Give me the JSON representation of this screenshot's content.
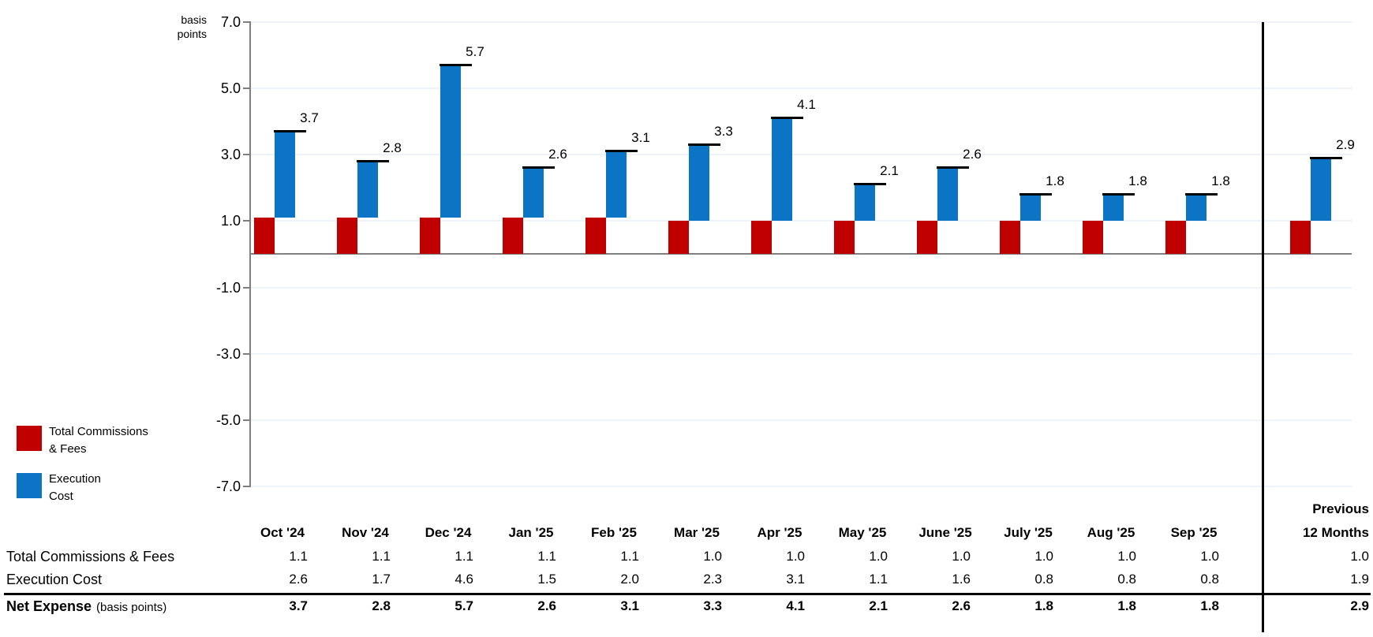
{
  "chart_data": {
    "type": "bar",
    "stacked": true,
    "ylabel": "basis points",
    "ylabel_lines": [
      "basis",
      "points"
    ],
    "ylim": [
      -7,
      7
    ],
    "yticks": [
      7,
      5,
      3,
      1,
      -1,
      -3,
      -5,
      -7
    ],
    "grid": true,
    "legend_position": "bottom-left",
    "categories": [
      "Oct '24",
      "Nov '24",
      "Dec '24",
      "Jan '25",
      "Feb '25",
      "Mar '25",
      "Apr '25",
      "May '25",
      "June '25",
      "July '25",
      "Aug '25",
      "Sep '25",
      "Previous 12 Months"
    ],
    "series": [
      {
        "name": "Total Commissions & Fees",
        "color": "#C00000",
        "values": [
          1.1,
          1.1,
          1.1,
          1.1,
          1.1,
          1.0,
          1.0,
          1.0,
          1.0,
          1.0,
          1.0,
          1.0,
          1.0
        ]
      },
      {
        "name": "Execution Cost",
        "color": "#0B74C4",
        "values": [
          2.6,
          1.7,
          4.6,
          1.5,
          2.0,
          2.3,
          3.1,
          1.1,
          1.6,
          0.8,
          0.8,
          0.8,
          1.9
        ]
      }
    ],
    "net_markers": {
      "name": "Net Expense",
      "unit": "basis points",
      "color": "#000000",
      "values": [
        3.7,
        2.8,
        5.7,
        2.6,
        3.1,
        3.3,
        4.1,
        2.1,
        2.6,
        1.8,
        1.8,
        1.8,
        2.9
      ]
    }
  },
  "legend": {
    "items": [
      {
        "lines": [
          "Total Commissions",
          "& Fees"
        ],
        "color": "#C00000"
      },
      {
        "lines": [
          "Execution",
          "Cost"
        ],
        "color": "#0B74C4"
      }
    ]
  },
  "table": {
    "columns": [
      "Oct '24",
      "Nov '24",
      "Dec '24",
      "Jan '25",
      "Feb '25",
      "Mar '25",
      "Apr '25",
      "May '25",
      "June '25",
      "July '25",
      "Aug '25",
      "Sep '25"
    ],
    "summary_header_lines": [
      "Previous",
      "12 Months"
    ],
    "rows": [
      {
        "label": "Total Commissions & Fees",
        "bold": false,
        "values": [
          "1.1",
          "1.1",
          "1.1",
          "1.1",
          "1.1",
          "1.0",
          "1.0",
          "1.0",
          "1.0",
          "1.0",
          "1.0",
          "1.0"
        ],
        "summary": "1.0"
      },
      {
        "label": "Execution Cost",
        "bold": false,
        "values": [
          "2.6",
          "1.7",
          "4.6",
          "1.5",
          "2.0",
          "2.3",
          "3.1",
          "1.1",
          "1.6",
          "0.8",
          "0.8",
          "0.8"
        ],
        "summary": "1.9"
      },
      {
        "label": "Net Expense",
        "label_suffix": "(basis points)",
        "bold": true,
        "values": [
          "3.7",
          "2.8",
          "5.7",
          "2.6",
          "3.1",
          "3.3",
          "4.1",
          "2.1",
          "2.6",
          "1.8",
          "1.8",
          "1.8"
        ],
        "summary": "2.9"
      }
    ]
  },
  "colors": {
    "grid": "#EEF2F9",
    "axis": "#7F7F7F",
    "zero_line": "#808080",
    "separator": "#000000"
  }
}
